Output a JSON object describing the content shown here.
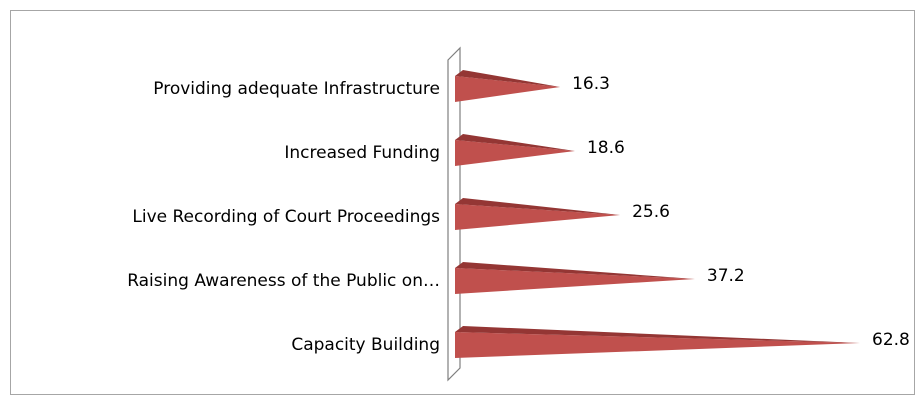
{
  "chart_data": {
    "type": "bar",
    "orientation": "horizontal",
    "categories": [
      "Providing adequate Infrastructure",
      "Increased Funding",
      "Live Recording of Court Proceedings",
      "Raising Awareness of the Public on…",
      "Capacity Building"
    ],
    "values": [
      16.3,
      18.6,
      25.6,
      37.2,
      62.8
    ],
    "color": "#c0504d"
  }
}
